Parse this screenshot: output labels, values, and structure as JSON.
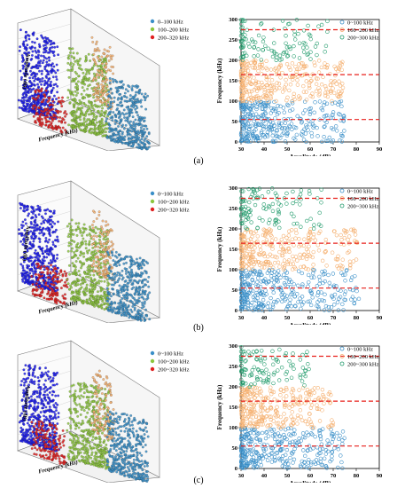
{
  "figure": {
    "panel_labels": [
      "(a)",
      "(b)",
      "(c)"
    ]
  },
  "colors": {
    "s1_3d": "#1c1cf0",
    "s2_3d": "#8cc63e",
    "s3_3d": "#e02020",
    "s4_3d": "#f5b070",
    "s5_3d": "#3a8fc8",
    "s1_2d": "#3a8fc8",
    "s2_2d": "#f5b070",
    "s3_2d": "#1f9a6a",
    "threshold": "#e8201c"
  },
  "chart_data": [
    {
      "panel": "a",
      "type": "scatter",
      "projection": "3d",
      "xlabel": "Frequency (kHz)",
      "ylabel": "Amplitude (dB)",
      "legend": {
        "placement": "top-right",
        "entries": [
          "0–100 kHz",
          "100–200 kHz",
          "200–320 kHz"
        ]
      },
      "series": [
        {
          "name": "0–100 kHz",
          "freq_range": [
            0,
            100
          ]
        },
        {
          "name": "100–200 kHz",
          "freq_range": [
            100,
            200
          ]
        },
        {
          "name": "200–320 kHz",
          "freq_range": [
            200,
            320
          ]
        }
      ]
    },
    {
      "panel": "a",
      "type": "scatter",
      "xlabel": "Amplitude (dB)",
      "ylabel": "Frequency (kHz)",
      "xlim": [
        30,
        90
      ],
      "ylim": [
        0,
        300
      ],
      "xticks": [
        30,
        40,
        50,
        60,
        70,
        80,
        90
      ],
      "yticks": [
        0,
        50,
        100,
        150,
        200,
        250,
        300
      ],
      "legend": {
        "placement": "top-right",
        "entries": [
          "0~100 kHz",
          "100~200 kHz",
          "200~300 kHz"
        ]
      },
      "thresholds": [
        55,
        165,
        275
      ],
      "series": [
        {
          "name": "0~100 kHz",
          "freq_range": [
            0,
            100
          ],
          "amp_range": [
            30,
            75
          ]
        },
        {
          "name": "100~200 kHz",
          "freq_range": [
            100,
            200
          ],
          "amp_range": [
            30,
            75
          ]
        },
        {
          "name": "200~300 kHz",
          "freq_range": [
            200,
            300
          ],
          "amp_range": [
            30,
            68
          ]
        }
      ]
    },
    {
      "panel": "b",
      "type": "scatter",
      "projection": "3d",
      "xlabel": "Frequency (kHz)",
      "ylabel": "Amplitude (dB)",
      "legend": {
        "placement": "top-right",
        "entries": [
          "0~100 kHz",
          "100~200 kHz",
          "200~320 kHz"
        ]
      },
      "series": [
        {
          "name": "0~100 kHz",
          "freq_range": [
            0,
            100
          ]
        },
        {
          "name": "100~200 kHz",
          "freq_range": [
            100,
            200
          ]
        },
        {
          "name": "200~320 kHz",
          "freq_range": [
            200,
            320
          ]
        }
      ]
    },
    {
      "panel": "b",
      "type": "scatter",
      "xlabel": "Amplitude (dB)",
      "ylabel": "Frequency (kHz)",
      "xlim": [
        30,
        90
      ],
      "ylim": [
        0,
        300
      ],
      "xticks": [
        30,
        40,
        50,
        60,
        70,
        80,
        90
      ],
      "yticks": [
        0,
        50,
        100,
        150,
        200,
        250,
        300
      ],
      "legend": {
        "placement": "top-right",
        "entries": [
          "0~100 kHz",
          "100~200 kHz",
          "200~300 kHz"
        ]
      },
      "thresholds": [
        55,
        165,
        275
      ],
      "series": [
        {
          "name": "0~100 kHz",
          "freq_range": [
            0,
            100
          ],
          "amp_range": [
            30,
            82
          ]
        },
        {
          "name": "100~200 kHz",
          "freq_range": [
            100,
            200
          ],
          "amp_range": [
            30,
            82
          ]
        },
        {
          "name": "200~300 kHz",
          "freq_range": [
            200,
            300
          ],
          "amp_range": [
            30,
            65
          ]
        }
      ]
    },
    {
      "panel": "c",
      "type": "scatter",
      "projection": "3d",
      "xlabel": "Frequency (kHz)",
      "ylabel": "Amplitude (dB)",
      "legend": {
        "placement": "top-right",
        "entries": [
          "0~100 kHz",
          "100~200 kHz",
          "200~320 kHz"
        ]
      },
      "series": [
        {
          "name": "0~100 kHz",
          "freq_range": [
            0,
            100
          ]
        },
        {
          "name": "100~200 kHz",
          "freq_range": [
            100,
            200
          ]
        },
        {
          "name": "200~320 kHz",
          "freq_range": [
            200,
            320
          ]
        }
      ]
    },
    {
      "panel": "c",
      "type": "scatter",
      "xlabel": "Amplitude (dB)",
      "ylabel": "Frequency (kHz)",
      "xlim": [
        30,
        90
      ],
      "ylim": [
        0,
        300
      ],
      "xticks": [
        30,
        40,
        50,
        60,
        70,
        80,
        90
      ],
      "yticks": [
        0,
        50,
        100,
        150,
        200,
        250,
        300
      ],
      "legend": {
        "placement": "top-right",
        "entries": [
          "0~100 kHz",
          "100~200 kHz",
          "200~300 kHz"
        ]
      },
      "thresholds": [
        55,
        165,
        275
      ],
      "series": [
        {
          "name": "0~100 kHz",
          "freq_range": [
            0,
            100
          ],
          "amp_range": [
            30,
            75
          ]
        },
        {
          "name": "100~200 kHz",
          "freq_range": [
            100,
            200
          ],
          "amp_range": [
            30,
            70
          ]
        },
        {
          "name": "200~300 kHz",
          "freq_range": [
            200,
            300
          ],
          "amp_range": [
            30,
            60
          ]
        }
      ]
    }
  ]
}
